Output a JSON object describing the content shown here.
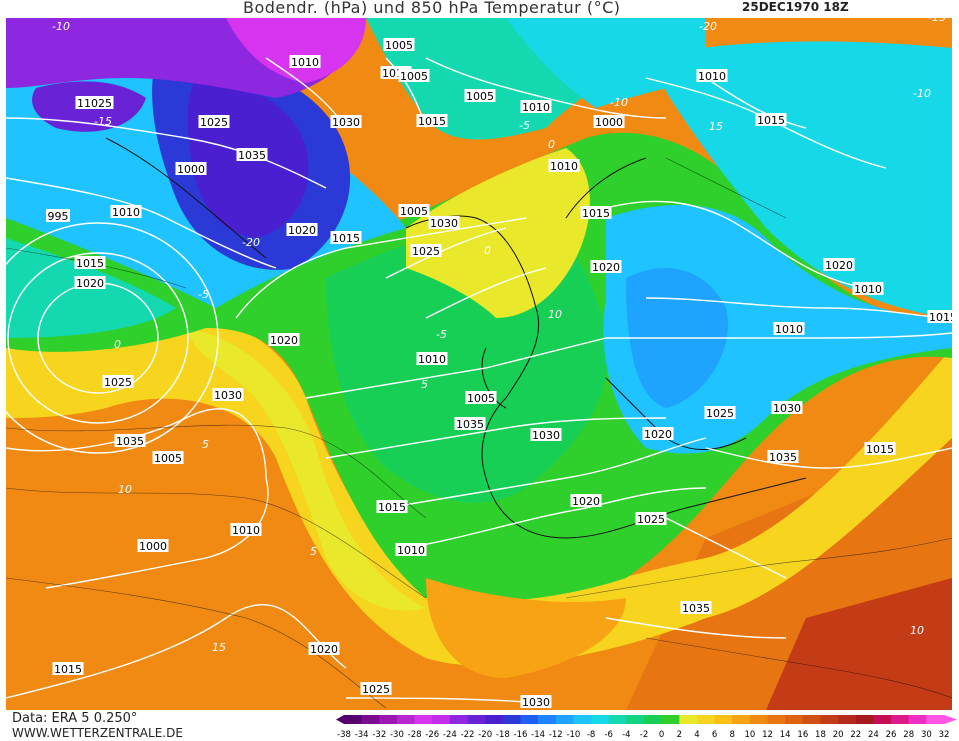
{
  "header": {
    "title": "Bodendr. (hPa) und 850 hPa Temperatur (°C)",
    "date": "25DEC1970 18Z"
  },
  "footer": {
    "data_source": "Data: ERA 5 0.250°",
    "website": "WWW.WETTERZENTRALE.DE"
  },
  "colorbar": {
    "ticks": [
      "-38",
      "-34",
      "-32",
      "-30",
      "-28",
      "-26",
      "-24",
      "-22",
      "-20",
      "-18",
      "-16",
      "-14",
      "-12",
      "-10",
      "-8",
      "-6",
      "-4",
      "-2",
      "0",
      "2",
      "4",
      "6",
      "8",
      "10",
      "12",
      "14",
      "16",
      "18",
      "20",
      "22",
      "24",
      "26",
      "28",
      "30",
      "32"
    ],
    "colors": [
      "#55006e",
      "#7b0a8f",
      "#9a17b0",
      "#b826d2",
      "#d634ee",
      "#c42ce8",
      "#8e27e0",
      "#6a22d6",
      "#4a1fd0",
      "#2b3ad6",
      "#1e5ef0",
      "#1f82ff",
      "#1ea3ff",
      "#1ec3ff",
      "#17d8e6",
      "#14d9b0",
      "#12d482",
      "#18cf55",
      "#2fcf2c",
      "#e9e82a",
      "#f7d51f",
      "#fbbf18",
      "#f7a314",
      "#f08a12",
      "#e67512",
      "#de6212",
      "#d05014",
      "#c33c16",
      "#b52a18",
      "#a51a1c",
      "#c20f55",
      "#dc1a8c",
      "#ef2fc3",
      "#ff55e6"
    ]
  },
  "pressure_labels": [
    "1005",
    "1010",
    "1015",
    "1020",
    "1025",
    "1030",
    "1035",
    "1000",
    "995",
    "1010",
    "1015",
    "1020",
    "1025",
    "1030",
    "1035",
    "1005",
    "1000",
    "1010",
    "1015",
    "1020",
    "1025",
    "1030",
    "1035",
    "1010",
    "1015",
    "1020",
    "1025",
    "1030",
    "1035",
    "1005",
    "1010",
    "1015",
    "1020",
    "1025",
    "1030",
    "1005",
    "1010",
    "1015",
    "1020",
    "1000",
    "1005",
    "1010",
    "1015",
    "1005",
    "1010",
    "1015",
    "1020",
    "1010",
    "1010",
    "1015",
    "1020",
    "1025",
    "1030",
    "1035",
    "1015",
    "1020",
    "1025"
  ],
  "temperature_labels": [
    "-10",
    "-15",
    "-20",
    "-5",
    "0",
    "5",
    "10",
    "15",
    "-10",
    "-5",
    "0",
    "5",
    "10",
    "15",
    "-10",
    "-15",
    "-20",
    "-5",
    "0",
    "5",
    "10"
  ]
}
